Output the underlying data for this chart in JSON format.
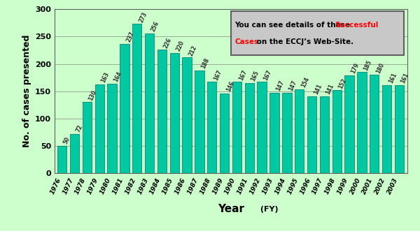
{
  "years": [
    "1976",
    "1977",
    "1978",
    "1979",
    "1980",
    "1981",
    "1982",
    "1983",
    "1984",
    "1985",
    "1986",
    "1987",
    "1988",
    "1989",
    "1990",
    "1991",
    "1992",
    "1993",
    "1994",
    "1995",
    "1996",
    "1997",
    "1998",
    "1999",
    "2000",
    "2001",
    "2002",
    "2003"
  ],
  "values": [
    50,
    72,
    130,
    163,
    164,
    237,
    273,
    256,
    226,
    220,
    212,
    188,
    167,
    146,
    167,
    165,
    167,
    147,
    147,
    154,
    141,
    141,
    152,
    179,
    185,
    180,
    161,
    161
  ],
  "bar_color": "#00C8A0",
  "bar_edge_color": "#007070",
  "background_color": "#CCFFCC",
  "ylabel": "No. of cases presented",
  "xlabel_main": "Year",
  "xlabel_small": " (FY)",
  "ylim": [
    0,
    300
  ],
  "yticks": [
    0,
    50,
    100,
    150,
    200,
    250,
    300
  ],
  "annotation_color": "#333333",
  "annotation_fontsize": 5.5,
  "box_bg_color": "#C8C8C8",
  "box_edge_color": "#606060",
  "grid_color": "#888888",
  "tick_fontsize": 6.5,
  "ylabel_fontsize": 9,
  "xlabel_fontsize_main": 11,
  "xlabel_fontsize_small": 8
}
